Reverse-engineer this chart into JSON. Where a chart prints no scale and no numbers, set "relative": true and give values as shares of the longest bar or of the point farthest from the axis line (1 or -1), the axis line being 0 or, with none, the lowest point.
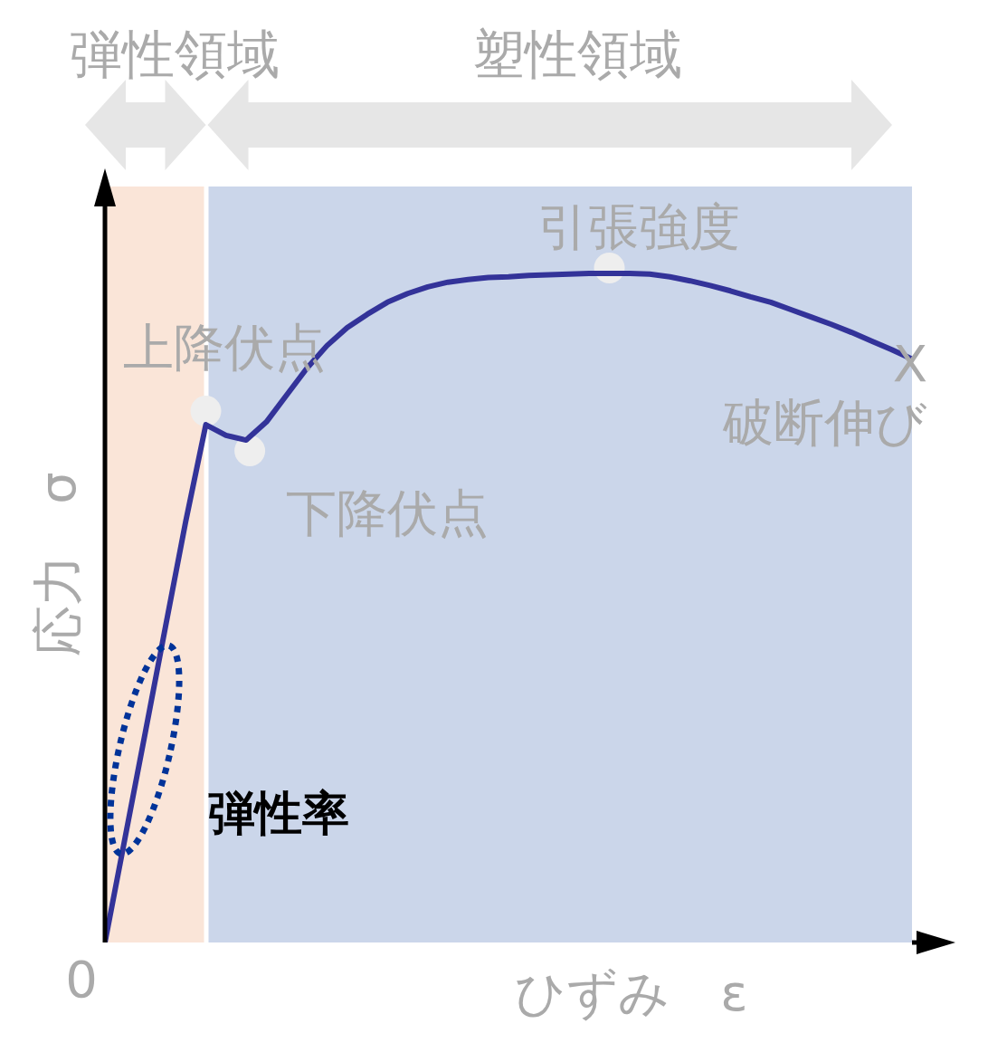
{
  "chart_data": {
    "type": "line",
    "relative": true,
    "xlabel": "ひずみ　ε",
    "ylabel": "応力　σ",
    "categories": [
      null,
      null,
      null,
      null,
      null,
      null,
      null,
      null,
      null,
      null,
      null,
      null,
      null,
      null,
      null,
      null,
      null,
      null,
      null,
      null,
      null,
      null,
      null,
      null,
      null,
      null,
      null,
      null,
      null,
      null,
      null,
      null,
      null,
      null,
      null,
      null,
      null,
      null,
      null,
      null,
      null
    ],
    "series": [
      {
        "color": "#333399",
        "values": [
          0,
          0.157,
          0.314,
          0.472,
          0.629,
          0.774,
          0.758,
          0.751,
          0.778,
          0.818,
          0.858,
          0.892,
          0.919,
          0.939,
          0.957,
          0.97,
          0.98,
          0.987,
          0.991,
          0.994,
          0.995,
          0.997,
          0.998,
          0.999,
          1,
          1,
          1,
          0.999,
          0.995,
          0.989,
          0.982,
          0.974,
          0.965,
          0.957,
          0.946,
          0.935,
          0.924,
          0.912,
          0.899,
          0.886,
          0.872
        ]
      }
    ],
    "annotations": [
      "弾性領域",
      "塑性領域",
      "上降伏点",
      "下降伏点",
      "引張強度",
      "X",
      "破断伸び",
      "弾性率",
      "0"
    ],
    "marker": "none",
    "line_style": "solid"
  }
}
